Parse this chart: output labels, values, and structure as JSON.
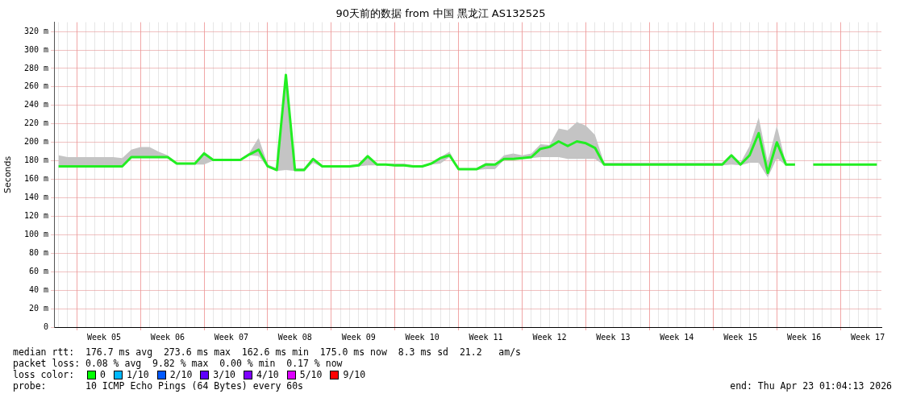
{
  "chart_data": {
    "type": "line",
    "title": "90天前的数据 from 中国 黑龙江 AS132525",
    "ylabel": "Seconds",
    "categories": [
      null,
      null,
      null,
      null,
      null,
      "Week 05",
      null,
      null,
      null,
      null,
      null,
      null,
      "Week 06",
      null,
      null,
      null,
      null,
      null,
      null,
      "Week 07",
      null,
      null,
      null,
      null,
      null,
      null,
      "Week 08",
      null,
      null,
      null,
      null,
      null,
      null,
      "Week 09",
      null,
      null,
      null,
      null,
      null,
      null,
      "Week 10",
      null,
      null,
      null,
      null,
      null,
      null,
      "Week 11",
      null,
      null,
      null,
      null,
      null,
      null,
      "Week 12",
      null,
      null,
      null,
      null,
      null,
      null,
      "Week 13",
      null,
      null,
      null,
      null,
      null,
      null,
      "Week 14",
      null,
      null,
      null,
      null,
      null,
      null,
      "Week 15",
      null,
      null,
      null,
      null,
      null,
      null,
      "Week 16",
      null,
      null,
      null,
      null,
      null,
      null,
      "Week 17",
      null
    ],
    "series": [
      {
        "color": "#22ee22",
        "values": [
          174,
          174,
          174,
          174,
          174,
          174,
          174,
          174,
          184,
          184,
          184,
          184,
          184,
          177,
          177,
          177,
          188,
          181,
          181,
          181,
          181,
          187,
          192,
          174,
          170,
          273,
          170,
          170,
          182,
          174,
          174,
          174,
          174,
          175,
          185,
          176,
          176,
          175,
          175,
          174,
          174,
          177,
          183,
          186,
          171,
          171,
          171,
          176,
          176,
          182,
          182,
          183,
          184,
          193,
          195,
          201,
          196,
          201,
          199,
          194,
          176,
          176,
          176,
          176,
          176,
          176,
          176,
          176,
          176,
          176,
          176,
          176,
          176,
          176,
          186,
          176,
          186,
          210,
          167,
          200,
          176,
          176,
          null,
          176,
          176,
          176,
          176,
          176,
          176,
          176,
          176
        ],
        "lower": [
          173,
          173,
          173,
          173,
          173,
          173,
          173,
          173,
          183,
          183,
          183,
          183,
          183,
          176,
          176,
          176,
          176,
          180,
          180,
          180,
          180,
          186,
          185,
          173,
          169,
          170,
          169,
          169,
          178,
          173,
          173,
          173,
          173,
          174,
          175,
          175,
          175,
          174,
          174,
          173,
          173,
          176,
          177,
          184,
          170,
          170,
          170,
          171,
          171,
          181,
          181,
          182,
          183,
          184,
          184,
          184,
          182,
          182,
          182,
          182,
          175,
          175,
          175,
          175,
          175,
          175,
          175,
          175,
          175,
          175,
          175,
          175,
          175,
          175,
          176,
          175,
          178,
          178,
          162,
          183,
          175,
          175,
          null,
          175,
          175,
          175,
          175,
          175,
          175,
          175,
          175
        ],
        "upper": [
          186,
          184,
          184,
          184,
          184,
          184,
          184,
          183,
          192,
          195,
          195,
          190,
          186,
          178,
          178,
          178,
          190,
          182,
          182,
          182,
          182,
          189,
          205,
          176,
          172,
          274,
          172,
          172,
          183,
          175,
          175,
          175,
          175,
          177,
          186,
          177,
          177,
          177,
          177,
          175,
          175,
          178,
          184,
          190,
          172,
          172,
          172,
          178,
          177,
          186,
          188,
          186,
          188,
          198,
          197,
          215,
          213,
          222,
          218,
          208,
          178,
          178,
          178,
          178,
          178,
          178,
          178,
          178,
          178,
          178,
          178,
          178,
          178,
          178,
          187,
          178,
          196,
          227,
          179,
          218,
          177,
          177,
          null,
          177,
          177,
          177,
          177,
          177,
          177,
          177,
          177
        ]
      }
    ],
    "ylim": [
      0,
      330
    ],
    "yticks": [
      {
        "value": 0,
        "label": "0"
      },
      {
        "value": 20,
        "label": "20 m"
      },
      {
        "value": 40,
        "label": "40 m"
      },
      {
        "value": 60,
        "label": "60 m"
      },
      {
        "value": 80,
        "label": "80 m"
      },
      {
        "value": 100,
        "label": "100 m"
      },
      {
        "value": 120,
        "label": "120 m"
      },
      {
        "value": 140,
        "label": "140 m"
      },
      {
        "value": 160,
        "label": "160 m"
      },
      {
        "value": 180,
        "label": "180 m"
      },
      {
        "value": 200,
        "label": "200 m"
      },
      {
        "value": 220,
        "label": "220 m"
      },
      {
        "value": 240,
        "label": "240 m"
      },
      {
        "value": 260,
        "label": "260 m"
      },
      {
        "value": 280,
        "label": "280 m"
      },
      {
        "value": 300,
        "label": "300 m"
      },
      {
        "value": 320,
        "label": "320 m"
      }
    ],
    "grid": true,
    "legend": false,
    "annotations": [
      "median rtt:  176.7 ms avg  273.6 ms max  162.6 ms min  175.0 ms now  8.3 ms sd  21.2   am/s",
      "packet loss: 0.08 % avg  9.82 % max  0.00 % min  0.17 % now",
      "loss color:",
      "0",
      "1/10",
      "2/10",
      "3/10",
      "4/10",
      "5/10",
      "9/10",
      "probe:       10 ICMP Echo Pings (64 Bytes) every 60s",
      "end: Thu Apr 23 01:04:13 2026"
    ]
  }
}
